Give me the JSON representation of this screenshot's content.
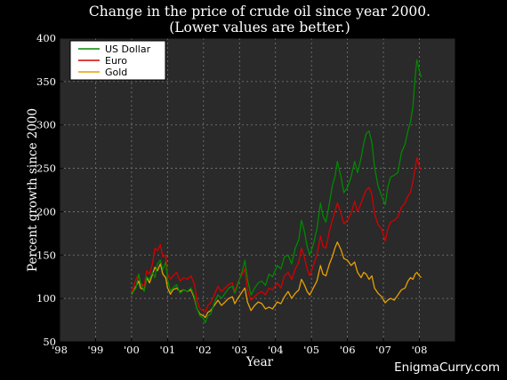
{
  "chart_data": {
    "type": "line",
    "title": "Change in the price of crude oil since year 2000.",
    "subtitle": "(Lower values are better.)",
    "xlabel": "Year",
    "ylabel": "Percent growth since 2000",
    "xlim": [
      1998,
      2009
    ],
    "ylim": [
      50,
      400
    ],
    "x_ticks": [
      {
        "value": 1998,
        "label": "'98"
      },
      {
        "value": 1999,
        "label": "'99"
      },
      {
        "value": 2000,
        "label": "'00"
      },
      {
        "value": 2001,
        "label": "'01"
      },
      {
        "value": 2002,
        "label": "'02"
      },
      {
        "value": 2003,
        "label": "'03"
      },
      {
        "value": 2004,
        "label": "'04"
      },
      {
        "value": 2005,
        "label": "'05"
      },
      {
        "value": 2006,
        "label": "'06"
      },
      {
        "value": 2007,
        "label": "'07"
      },
      {
        "value": 2008,
        "label": "'08"
      }
    ],
    "y_ticks": [
      50,
      100,
      150,
      200,
      250,
      300,
      350,
      400
    ],
    "grid": true,
    "legend_position": "top-left",
    "watermark": "EnigmaCurry.com",
    "background": "#000000",
    "plot_background": "#2a2a2a",
    "series": [
      {
        "name": "US Dollar",
        "color": "#008800",
        "points": [
          [
            2000.0,
            106
          ],
          [
            2000.05,
            108
          ],
          [
            2000.12,
            112
          ],
          [
            2000.2,
            128
          ],
          [
            2000.25,
            118
          ],
          [
            2000.35,
            108
          ],
          [
            2000.42,
            125
          ],
          [
            2000.5,
            122
          ],
          [
            2000.58,
            130
          ],
          [
            2000.65,
            124
          ],
          [
            2000.72,
            140
          ],
          [
            2000.8,
            144
          ],
          [
            2000.87,
            133
          ],
          [
            2000.95,
            142
          ],
          [
            2001.0,
            122
          ],
          [
            2001.08,
            108
          ],
          [
            2001.15,
            112
          ],
          [
            2001.25,
            116
          ],
          [
            2001.35,
            106
          ],
          [
            2001.45,
            110
          ],
          [
            2001.55,
            108
          ],
          [
            2001.65,
            112
          ],
          [
            2001.75,
            102
          ],
          [
            2001.82,
            88
          ],
          [
            2001.9,
            80
          ],
          [
            2002.0,
            77
          ],
          [
            2002.05,
            72
          ],
          [
            2002.12,
            80
          ],
          [
            2002.2,
            82
          ],
          [
            2002.3,
            95
          ],
          [
            2002.4,
            104
          ],
          [
            2002.5,
            100
          ],
          [
            2002.6,
            106
          ],
          [
            2002.7,
            112
          ],
          [
            2002.8,
            114
          ],
          [
            2002.87,
            106
          ],
          [
            2002.95,
            116
          ],
          [
            2003.08,
            132
          ],
          [
            2003.15,
            144
          ],
          [
            2003.22,
            122
          ],
          [
            2003.32,
            104
          ],
          [
            2003.42,
            112
          ],
          [
            2003.52,
            118
          ],
          [
            2003.62,
            120
          ],
          [
            2003.72,
            115
          ],
          [
            2003.82,
            128
          ],
          [
            2003.92,
            125
          ],
          [
            2004.05,
            138
          ],
          [
            2004.15,
            134
          ],
          [
            2004.25,
            148
          ],
          [
            2004.35,
            150
          ],
          [
            2004.45,
            140
          ],
          [
            2004.55,
            158
          ],
          [
            2004.65,
            168
          ],
          [
            2004.72,
            190
          ],
          [
            2004.8,
            178
          ],
          [
            2004.88,
            160
          ],
          [
            2004.95,
            150
          ],
          [
            2005.05,
            162
          ],
          [
            2005.15,
            180
          ],
          [
            2005.25,
            210
          ],
          [
            2005.32,
            195
          ],
          [
            2005.4,
            188
          ],
          [
            2005.5,
            210
          ],
          [
            2005.58,
            230
          ],
          [
            2005.65,
            240
          ],
          [
            2005.72,
            258
          ],
          [
            2005.82,
            240
          ],
          [
            2005.9,
            222
          ],
          [
            2006.0,
            228
          ],
          [
            2006.1,
            240
          ],
          [
            2006.2,
            258
          ],
          [
            2006.28,
            245
          ],
          [
            2006.38,
            262
          ],
          [
            2006.45,
            278
          ],
          [
            2006.52,
            290
          ],
          [
            2006.6,
            293
          ],
          [
            2006.68,
            280
          ],
          [
            2006.75,
            252
          ],
          [
            2006.85,
            230
          ],
          [
            2006.95,
            218
          ],
          [
            2007.05,
            208
          ],
          [
            2007.12,
            228
          ],
          [
            2007.2,
            240
          ],
          [
            2007.3,
            242
          ],
          [
            2007.4,
            245
          ],
          [
            2007.5,
            268
          ],
          [
            2007.6,
            278
          ],
          [
            2007.68,
            293
          ],
          [
            2007.75,
            303
          ],
          [
            2007.82,
            322
          ],
          [
            2007.88,
            355
          ],
          [
            2007.93,
            375
          ],
          [
            2008.0,
            362
          ],
          [
            2008.05,
            355
          ]
        ]
      },
      {
        "name": "Euro",
        "color": "#d40000",
        "points": [
          [
            2000.0,
            108
          ],
          [
            2000.05,
            112
          ],
          [
            2000.12,
            122
          ],
          [
            2000.2,
            128
          ],
          [
            2000.25,
            118
          ],
          [
            2000.35,
            114
          ],
          [
            2000.42,
            132
          ],
          [
            2000.5,
            128
          ],
          [
            2000.58,
            140
          ],
          [
            2000.65,
            158
          ],
          [
            2000.72,
            155
          ],
          [
            2000.8,
            162
          ],
          [
            2000.87,
            148
          ],
          [
            2000.95,
            150
          ],
          [
            2001.0,
            128
          ],
          [
            2001.08,
            122
          ],
          [
            2001.15,
            126
          ],
          [
            2001.25,
            130
          ],
          [
            2001.35,
            120
          ],
          [
            2001.45,
            124
          ],
          [
            2001.55,
            122
          ],
          [
            2001.65,
            126
          ],
          [
            2001.75,
            116
          ],
          [
            2001.82,
            98
          ],
          [
            2001.9,
            88
          ],
          [
            2002.0,
            86
          ],
          [
            2002.05,
            84
          ],
          [
            2002.12,
            92
          ],
          [
            2002.2,
            95
          ],
          [
            2002.3,
            104
          ],
          [
            2002.4,
            114
          ],
          [
            2002.5,
            108
          ],
          [
            2002.6,
            112
          ],
          [
            2002.7,
            116
          ],
          [
            2002.8,
            118
          ],
          [
            2002.87,
            108
          ],
          [
            2002.95,
            118
          ],
          [
            2003.08,
            128
          ],
          [
            2003.15,
            134
          ],
          [
            2003.22,
            110
          ],
          [
            2003.32,
            98
          ],
          [
            2003.42,
            102
          ],
          [
            2003.52,
            106
          ],
          [
            2003.62,
            108
          ],
          [
            2003.72,
            104
          ],
          [
            2003.82,
            112
          ],
          [
            2003.92,
            110
          ],
          [
            2004.05,
            118
          ],
          [
            2004.15,
            112
          ],
          [
            2004.25,
            126
          ],
          [
            2004.35,
            130
          ],
          [
            2004.45,
            122
          ],
          [
            2004.55,
            134
          ],
          [
            2004.65,
            142
          ],
          [
            2004.72,
            158
          ],
          [
            2004.8,
            148
          ],
          [
            2004.88,
            134
          ],
          [
            2004.95,
            126
          ],
          [
            2005.05,
            138
          ],
          [
            2005.15,
            150
          ],
          [
            2005.25,
            172
          ],
          [
            2005.32,
            160
          ],
          [
            2005.4,
            158
          ],
          [
            2005.5,
            178
          ],
          [
            2005.58,
            190
          ],
          [
            2005.65,
            200
          ],
          [
            2005.72,
            210
          ],
          [
            2005.82,
            198
          ],
          [
            2005.9,
            186
          ],
          [
            2006.0,
            190
          ],
          [
            2006.1,
            198
          ],
          [
            2006.2,
            212
          ],
          [
            2006.28,
            200
          ],
          [
            2006.38,
            210
          ],
          [
            2006.45,
            218
          ],
          [
            2006.52,
            225
          ],
          [
            2006.6,
            228
          ],
          [
            2006.68,
            220
          ],
          [
            2006.75,
            198
          ],
          [
            2006.85,
            185
          ],
          [
            2006.95,
            180
          ],
          [
            2007.05,
            166
          ],
          [
            2007.12,
            180
          ],
          [
            2007.2,
            188
          ],
          [
            2007.3,
            190
          ],
          [
            2007.4,
            194
          ],
          [
            2007.5,
            205
          ],
          [
            2007.6,
            210
          ],
          [
            2007.68,
            218
          ],
          [
            2007.75,
            222
          ],
          [
            2007.82,
            235
          ],
          [
            2007.88,
            250
          ],
          [
            2007.93,
            262
          ],
          [
            2008.0,
            252
          ],
          [
            2008.05,
            248
          ]
        ]
      },
      {
        "name": "Gold",
        "color": "#e8a000",
        "points": [
          [
            2000.0,
            105
          ],
          [
            2000.05,
            108
          ],
          [
            2000.12,
            114
          ],
          [
            2000.2,
            120
          ],
          [
            2000.25,
            112
          ],
          [
            2000.35,
            110
          ],
          [
            2000.42,
            124
          ],
          [
            2000.5,
            118
          ],
          [
            2000.58,
            128
          ],
          [
            2000.65,
            136
          ],
          [
            2000.72,
            132
          ],
          [
            2000.8,
            140
          ],
          [
            2000.87,
            128
          ],
          [
            2000.95,
            124
          ],
          [
            2001.0,
            112
          ],
          [
            2001.08,
            105
          ],
          [
            2001.15,
            110
          ],
          [
            2001.25,
            112
          ],
          [
            2001.35,
            108
          ],
          [
            2001.45,
            110
          ],
          [
            2001.55,
            108
          ],
          [
            2001.65,
            110
          ],
          [
            2001.75,
            100
          ],
          [
            2001.82,
            88
          ],
          [
            2001.9,
            82
          ],
          [
            2002.0,
            80
          ],
          [
            2002.05,
            78
          ],
          [
            2002.12,
            84
          ],
          [
            2002.2,
            86
          ],
          [
            2002.3,
            92
          ],
          [
            2002.4,
            98
          ],
          [
            2002.5,
            92
          ],
          [
            2002.6,
            96
          ],
          [
            2002.7,
            100
          ],
          [
            2002.8,
            102
          ],
          [
            2002.87,
            94
          ],
          [
            2002.95,
            100
          ],
          [
            2003.08,
            108
          ],
          [
            2003.15,
            112
          ],
          [
            2003.22,
            96
          ],
          [
            2003.32,
            86
          ],
          [
            2003.42,
            92
          ],
          [
            2003.52,
            96
          ],
          [
            2003.62,
            94
          ],
          [
            2003.72,
            88
          ],
          [
            2003.82,
            90
          ],
          [
            2003.92,
            88
          ],
          [
            2004.05,
            96
          ],
          [
            2004.15,
            94
          ],
          [
            2004.25,
            102
          ],
          [
            2004.35,
            108
          ],
          [
            2004.45,
            100
          ],
          [
            2004.55,
            106
          ],
          [
            2004.65,
            110
          ],
          [
            2004.72,
            122
          ],
          [
            2004.8,
            116
          ],
          [
            2004.88,
            108
          ],
          [
            2004.95,
            104
          ],
          [
            2005.05,
            112
          ],
          [
            2005.15,
            120
          ],
          [
            2005.25,
            138
          ],
          [
            2005.32,
            128
          ],
          [
            2005.4,
            126
          ],
          [
            2005.5,
            140
          ],
          [
            2005.58,
            148
          ],
          [
            2005.65,
            158
          ],
          [
            2005.72,
            165
          ],
          [
            2005.82,
            156
          ],
          [
            2005.9,
            146
          ],
          [
            2006.0,
            144
          ],
          [
            2006.1,
            138
          ],
          [
            2006.2,
            142
          ],
          [
            2006.28,
            130
          ],
          [
            2006.38,
            124
          ],
          [
            2006.45,
            130
          ],
          [
            2006.52,
            128
          ],
          [
            2006.6,
            122
          ],
          [
            2006.68,
            126
          ],
          [
            2006.75,
            112
          ],
          [
            2006.85,
            106
          ],
          [
            2006.95,
            102
          ],
          [
            2007.05,
            95
          ],
          [
            2007.12,
            98
          ],
          [
            2007.2,
            100
          ],
          [
            2007.3,
            98
          ],
          [
            2007.4,
            104
          ],
          [
            2007.5,
            110
          ],
          [
            2007.6,
            112
          ],
          [
            2007.68,
            120
          ],
          [
            2007.75,
            124
          ],
          [
            2007.82,
            122
          ],
          [
            2007.88,
            128
          ],
          [
            2007.93,
            130
          ],
          [
            2008.0,
            126
          ],
          [
            2008.05,
            124
          ]
        ]
      }
    ]
  }
}
